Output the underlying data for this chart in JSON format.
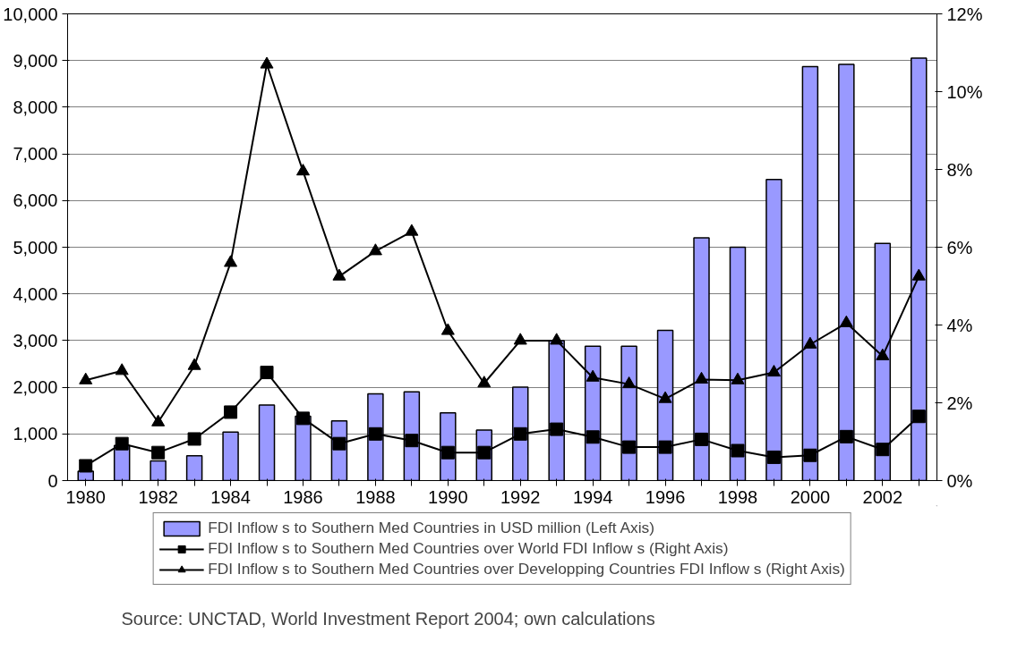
{
  "chart_data": {
    "type": "bar",
    "categories": [
      "1980",
      null,
      "1982",
      null,
      "1984",
      null,
      "1986",
      null,
      "1988",
      null,
      "1990",
      null,
      "1992",
      null,
      "1994",
      null,
      "1996",
      null,
      "1998",
      null,
      "2000",
      null,
      "2002",
      null
    ],
    "series": [
      {
        "name": "FDI Inflow s to Southern Med Countries in USD million (Left Axis)",
        "color": "#9999ff",
        "values": [
          200,
          750,
          420,
          530,
          1040,
          1620,
          1380,
          1280,
          1860,
          1900,
          1450,
          1080,
          2000,
          3000,
          2880,
          2880,
          3220,
          5200,
          5000,
          6450,
          8870,
          8920,
          5080,
          9050
        ]
      },
      {
        "name": "FDI Inflow s to Southern Med Countries over World FDI Inflow s (Right Axis)",
        "type": "line",
        "axis": "y2",
        "color": "#000000",
        "marker": "square",
        "values": [
          0.38,
          0.95,
          0.72,
          1.07,
          1.76,
          2.78,
          1.6,
          0.95,
          1.2,
          1.03,
          0.72,
          0.72,
          1.2,
          1.32,
          1.12,
          0.86,
          0.86,
          1.06,
          0.77,
          0.6,
          0.65,
          1.13,
          0.8,
          1.65
        ]
      },
      {
        "name": "FDI Inflow s to Southern Med Countries over Developping Countries FDI Inflow s (Right Axis)",
        "type": "line",
        "axis": "y2",
        "color": "#000000",
        "marker": "triangle",
        "values": [
          2.58,
          2.82,
          1.5,
          2.95,
          5.6,
          10.7,
          7.95,
          5.25,
          5.9,
          6.4,
          3.85,
          2.5,
          3.6,
          3.6,
          2.65,
          2.48,
          2.1,
          2.6,
          2.58,
          2.78,
          3.5,
          4.05,
          3.2,
          5.25
        ]
      }
    ],
    "ylim": [
      0,
      10000
    ],
    "yticks": [
      0,
      {
        "value": 1000,
        "label": "1,000"
      },
      {
        "value": 2000,
        "label": "2,000"
      },
      {
        "value": 3000,
        "label": "3,000"
      },
      {
        "value": 4000,
        "label": "4,000"
      },
      {
        "value": 5000,
        "label": "5,000"
      },
      {
        "value": 6000,
        "label": "6,000"
      },
      {
        "value": 7000,
        "label": "7,000"
      },
      {
        "value": 8000,
        "label": "8,000"
      },
      {
        "value": 9000,
        "label": "9,000"
      },
      {
        "value": 10000,
        "label": "10,000"
      }
    ],
    "y2lim": [
      0,
      12
    ],
    "y2ticks": [
      {
        "value": 0,
        "label": "0%"
      },
      {
        "value": 2,
        "label": "2%"
      },
      {
        "value": 4,
        "label": "4%"
      },
      {
        "value": 6,
        "label": "6%"
      },
      {
        "value": 8,
        "label": "8%"
      },
      {
        "value": 10,
        "label": "10%"
      },
      {
        "value": 12,
        "label": "12%"
      }
    ],
    "grid": "y",
    "legend": "bottom",
    "line_style": "solid",
    "annotations": [
      "Source: UNCTAD, World Investment Report 2004; own calculations"
    ]
  }
}
